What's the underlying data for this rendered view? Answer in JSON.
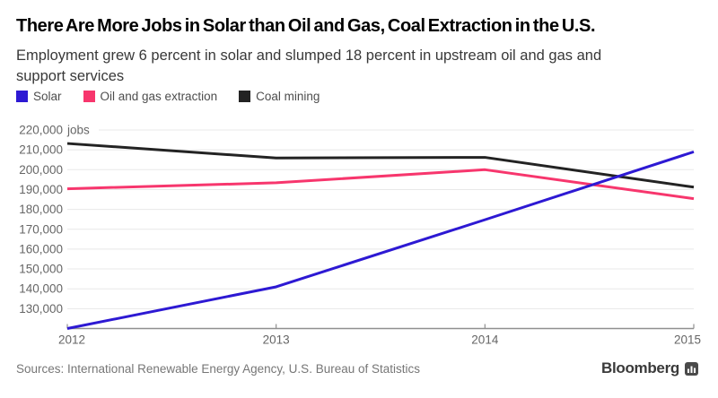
{
  "header": {
    "title": "There Are More Jobs in Solar than Oil and Gas, Coal Extraction in the U.S.",
    "subtitle_line1": "Employment grew 6 percent in solar and slumped 18 percent in upstream oil and gas and",
    "subtitle_line2": "support services"
  },
  "chart_data": {
    "type": "line",
    "x": [
      "2012",
      "2013",
      "2014",
      "2015"
    ],
    "series": [
      {
        "name": "Solar",
        "color": "#2d19d3",
        "values": [
          120000,
          141000,
          174800,
          209000
        ]
      },
      {
        "name": "Oil and gas extraction",
        "color": "#f7366d",
        "values": [
          190400,
          193400,
          200000,
          185400
        ]
      },
      {
        "name": "Coal mining",
        "color": "#232323",
        "values": [
          213200,
          205900,
          206200,
          191200
        ]
      }
    ],
    "ylim": [
      120000,
      220000
    ],
    "y_tick_step": 10000,
    "y_unit_suffix": "jobs",
    "grid": true,
    "legend_position": "top-left",
    "xlabel": "",
    "ylabel": "",
    "axis_color": "#8f8f8f",
    "gridline_color": "#e8e8e8",
    "tick_label_color": "#666666"
  },
  "footer": {
    "sources": "Sources: International Renewable Energy Agency, U.S. Bureau of Statistics",
    "brand": "Bloomberg"
  }
}
